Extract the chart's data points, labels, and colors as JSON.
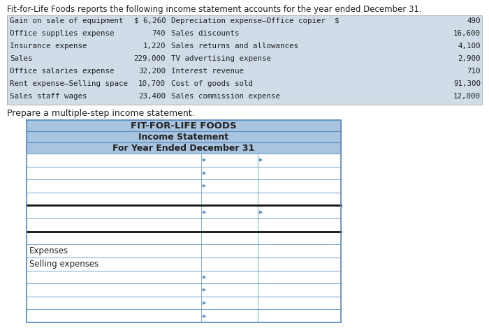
{
  "title_line1": "Fit-for-Life Foods reports the following income statement accounts for the year ended December 31.",
  "left_items": [
    [
      "Gain on sale of equipment",
      "$ 6,260"
    ],
    [
      "Office supplies expense",
      "740"
    ],
    [
      "Insurance expense",
      "1,220"
    ],
    [
      "Sales",
      "229,000"
    ],
    [
      "Office salaries expense",
      "32,200"
    ],
    [
      "Rent expense–Selling space",
      "10,700"
    ],
    [
      "Sales staff wages",
      "23,400"
    ]
  ],
  "right_items": [
    [
      "Depreciation expense–Office copier  $",
      "490"
    ],
    [
      "Sales discounts",
      "16,600"
    ],
    [
      "Sales returns and allowances",
      "4,100"
    ],
    [
      "TV advertising expense",
      "2,900"
    ],
    [
      "Interest revenue",
      "710"
    ],
    [
      "Cost of goods sold",
      "91,300"
    ],
    [
      "Sales commission expense",
      "12,000"
    ]
  ],
  "prepare_text": "Prepare a multiple-step income statement.",
  "table_title1": "FIT-FOR-LIFE FOODS",
  "table_title2": "Income Statement",
  "table_title3": "For Year Ended December 31",
  "header_bg": "#a8c4df",
  "border_color": "#5a8fc0",
  "dark_border": "#111111",
  "text_color": "#222222",
  "band_bg": "#d0dce8"
}
